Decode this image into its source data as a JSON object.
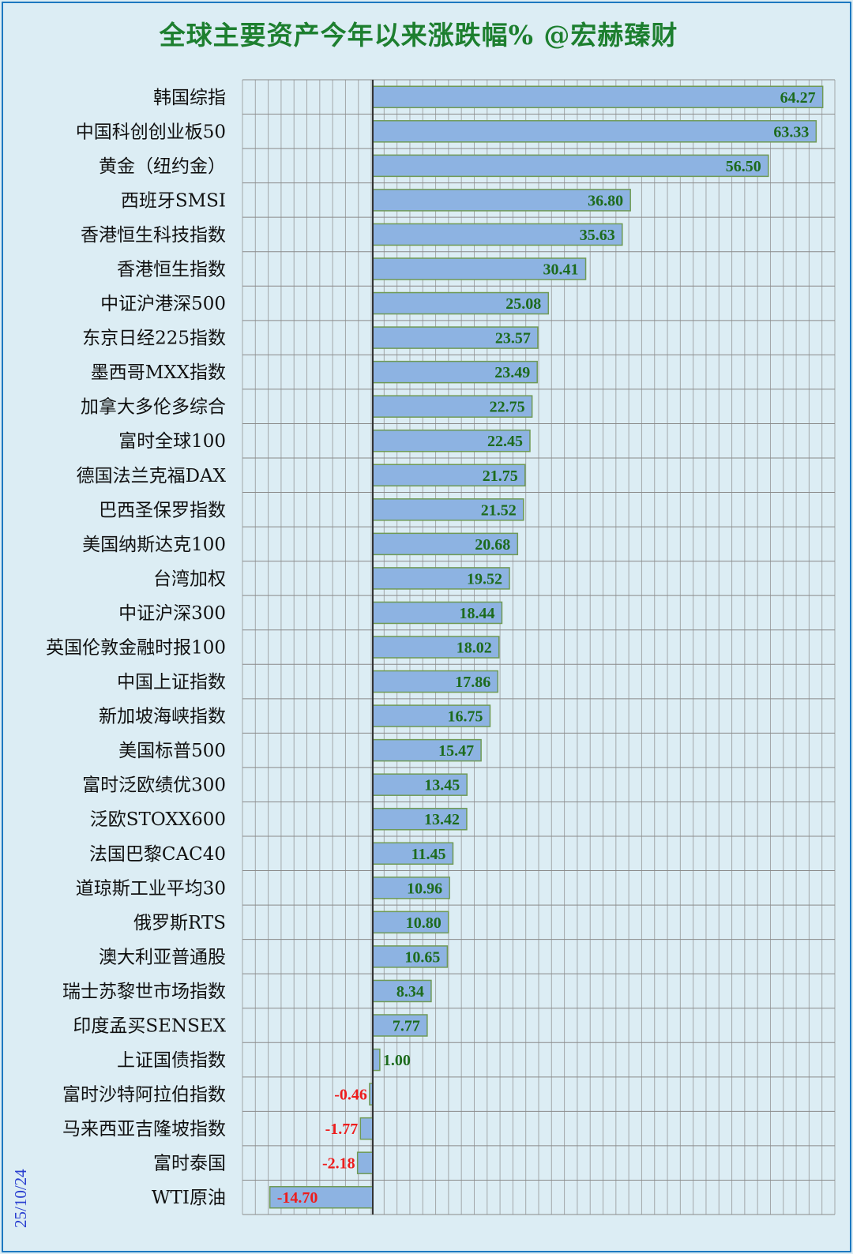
{
  "title": "全球主要资产今年以来涨跌幅% @宏赫臻财",
  "date_label": "25/10/24",
  "colors": {
    "background": "#dcedf4",
    "border": "#1c78c0",
    "title": "#1d7f2f",
    "bar_fill": "#8db3e2",
    "bar_stroke": "#6f9a55",
    "positive_label": "#1d6b1d",
    "negative_label": "#ee1c1c",
    "grid": "#8a8a8a",
    "zero_line": "#333333",
    "date": "#2a3fd0"
  },
  "chart_data": {
    "type": "bar",
    "orientation": "horizontal",
    "title": "全球主要资产今年以来涨跌幅% @宏赫臻财",
    "xlim": [
      -19,
      66
    ],
    "grid": true,
    "categories": [
      "韩国综指",
      "中国科创创业板50",
      "黄金（纽约金）",
      "西班牙SMSI",
      "香港恒生科技指数",
      "香港恒生指数",
      "中证沪港深500",
      "东京日经225指数",
      "墨西哥MXX指数",
      "加拿大多伦多综合",
      "富时全球100",
      "德国法兰克福DAX",
      "巴西圣保罗指数",
      "美国纳斯达克100",
      "台湾加权",
      "中证沪深300",
      "英国伦敦金融时报100",
      "中国上证指数",
      "新加坡海峡指数",
      "美国标普500",
      "富时泛欧绩优300",
      "泛欧STOXX600",
      "法国巴黎CAC40",
      "道琼斯工业平均30",
      "俄罗斯RTS",
      "澳大利亚普通股",
      "瑞士苏黎世市场指数",
      "印度孟买SENSEX",
      "上证国债指数",
      "富时沙特阿拉伯指数",
      "马来西亚吉隆坡指数",
      "富时泰国",
      "WTI原油"
    ],
    "values": [
      64.27,
      63.33,
      56.5,
      36.8,
      35.63,
      30.41,
      25.08,
      23.57,
      23.49,
      22.75,
      22.45,
      21.75,
      21.52,
      20.68,
      19.52,
      18.44,
      18.02,
      17.86,
      16.75,
      15.47,
      13.45,
      13.42,
      11.45,
      10.96,
      10.8,
      10.65,
      8.34,
      7.77,
      1.0,
      -0.46,
      -1.77,
      -2.18,
      -14.7
    ],
    "value_labels": [
      "64.27",
      "63.33",
      "56.50",
      "36.80",
      "35.63",
      "30.41",
      "25.08",
      "23.57",
      "23.49",
      "22.75",
      "22.45",
      "21.75",
      "21.52",
      "20.68",
      "19.52",
      "18.44",
      "18.02",
      "17.86",
      "16.75",
      "15.47",
      "13.45",
      "13.42",
      "11.45",
      "10.96",
      "10.80",
      "10.65",
      "8.34",
      "7.77",
      "1.00",
      "-0.46",
      "-1.77",
      "-2.18",
      "-14.70"
    ]
  }
}
